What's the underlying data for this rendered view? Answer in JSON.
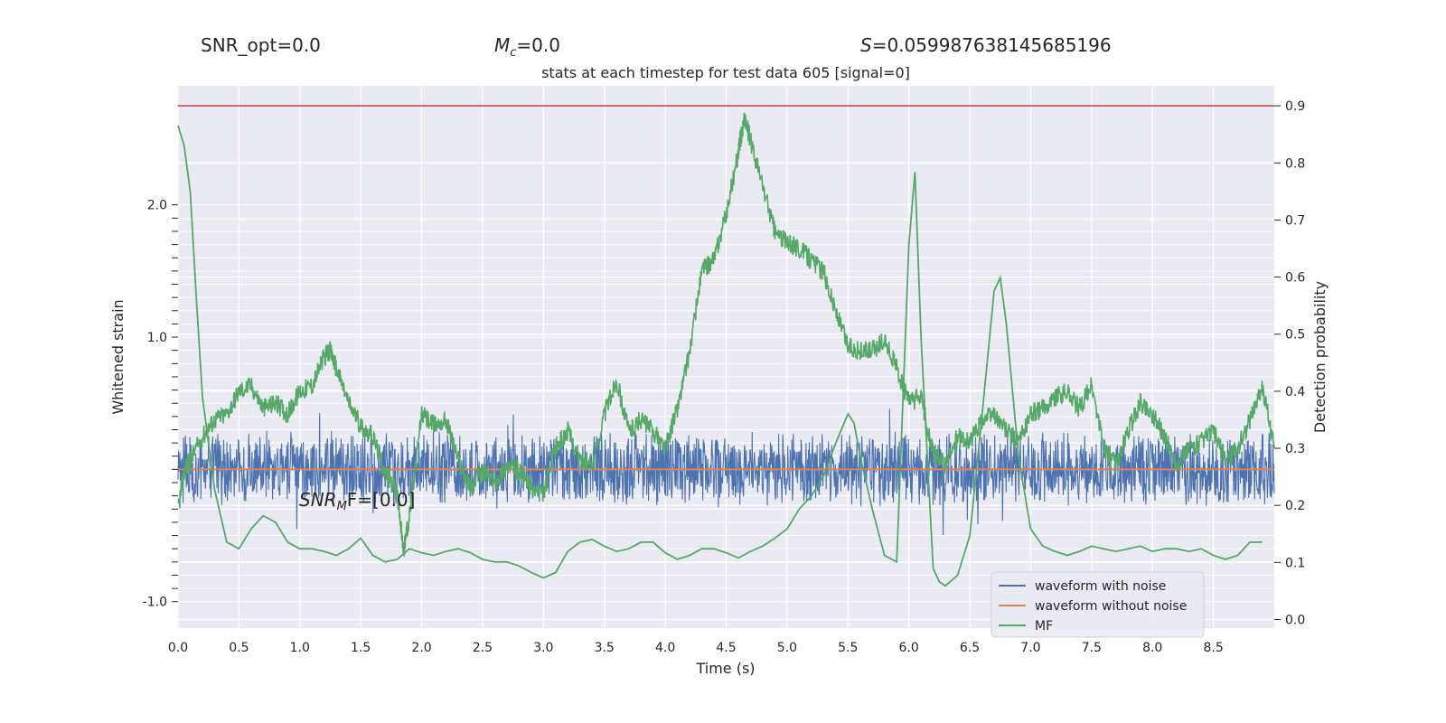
{
  "stats": {
    "snr_opt": "SNR_opt=0.0",
    "mc_symbol": "M",
    "mc_sub": "c",
    "mc_value": "=0.0",
    "s_symbol": "S",
    "s_value": "=0.0599876381456851​96"
  },
  "title": "stats at each timestep for test data 605 [signal=0]",
  "annotation": {
    "text_main": "SNR",
    "text_sub": "M",
    "text_tail": "F=[0.0]"
  },
  "chart_data": {
    "type": "line",
    "title": "stats at each timestep for test data 605 [signal=0]",
    "xlabel": "Time (s)",
    "xlim": [
      0,
      9.0
    ],
    "x_ticks": [
      "0.0",
      "0.5",
      "1.0",
      "1.5",
      "2.0",
      "2.5",
      "3.0",
      "3.5",
      "4.0",
      "4.5",
      "5.0",
      "5.5",
      "6.0",
      "6.5",
      "7.0",
      "7.5",
      "8.0",
      "8.5"
    ],
    "grid": true,
    "left_axis": {
      "ylabel": "Whitened strain",
      "ylim": [
        -1.2,
        2.9
      ],
      "tick_labels_visible": [
        "2.0",
        "1.0",
        "-1.0"
      ]
    },
    "right_axis": {
      "ylabel": "Detection probability",
      "ylim": [
        -0.015,
        0.935
      ],
      "ticks": [
        "0.0",
        "0.1",
        "0.2",
        "0.3",
        "0.4",
        "0.5",
        "0.6",
        "0.7",
        "0.8",
        "0.9"
      ]
    },
    "threshold": {
      "value": 0.9,
      "axis": "right",
      "color": "#c44e52"
    },
    "series": [
      {
        "name": "waveform with noise",
        "axis": "left",
        "color": "#4c72b0",
        "mean": 0.0,
        "amplitude": 0.3
      },
      {
        "name": "waveform without noise",
        "axis": "left",
        "color": "#dd8452",
        "value": 0.0
      },
      {
        "name": "MF",
        "axis": "left",
        "color": "#55a868",
        "x": [
          0.0,
          0.05,
          0.1,
          0.15,
          0.2,
          0.3,
          0.4,
          0.5,
          0.6,
          0.7,
          0.8,
          0.9,
          1.0,
          1.1,
          1.2,
          1.3,
          1.4,
          1.5,
          1.6,
          1.7,
          1.8,
          1.9,
          2.0,
          2.1,
          2.2,
          2.3,
          2.4,
          2.5,
          2.6,
          2.7,
          2.8,
          2.9,
          3.0,
          3.1,
          3.2,
          3.3,
          3.4,
          3.5,
          3.6,
          3.7,
          3.8,
          3.9,
          4.0,
          4.1,
          4.2,
          4.3,
          4.4,
          4.5,
          4.6,
          4.7,
          4.8,
          4.9,
          5.0,
          5.1,
          5.2,
          5.3,
          5.4,
          5.5,
          5.55,
          5.6,
          5.7,
          5.8,
          5.9,
          6.0,
          6.05,
          6.1,
          6.2,
          6.25,
          6.3,
          6.4,
          6.5,
          6.6,
          6.7,
          6.75,
          6.8,
          6.9,
          7.0,
          7.1,
          7.2,
          7.3,
          7.4,
          7.5,
          7.6,
          7.7,
          7.8,
          7.9,
          8.0,
          8.1,
          8.2,
          8.3,
          8.4,
          8.5,
          8.6,
          8.7,
          8.8,
          8.9
        ],
        "y": [
          2.6,
          2.45,
          2.1,
          1.3,
          0.55,
          -0.15,
          -0.55,
          -0.6,
          -0.45,
          -0.35,
          -0.4,
          -0.55,
          -0.6,
          -0.6,
          -0.62,
          -0.65,
          -0.6,
          -0.52,
          -0.65,
          -0.7,
          -0.68,
          -0.6,
          -0.63,
          -0.65,
          -0.62,
          -0.6,
          -0.63,
          -0.68,
          -0.7,
          -0.7,
          -0.73,
          -0.78,
          -0.82,
          -0.78,
          -0.62,
          -0.55,
          -0.53,
          -0.58,
          -0.62,
          -0.6,
          -0.55,
          -0.55,
          -0.63,
          -0.68,
          -0.65,
          -0.6,
          -0.6,
          -0.63,
          -0.67,
          -0.62,
          -0.58,
          -0.52,
          -0.45,
          -0.3,
          -0.2,
          -0.05,
          0.2,
          0.42,
          0.35,
          0.1,
          -0.3,
          -0.65,
          -0.7,
          1.7,
          2.25,
          1.0,
          -0.75,
          -0.85,
          -0.88,
          -0.8,
          -0.5,
          0.4,
          1.35,
          1.45,
          1.1,
          0.1,
          -0.45,
          -0.58,
          -0.62,
          -0.65,
          -0.62,
          -0.58,
          -0.6,
          -0.62,
          -0.6,
          -0.58,
          -0.62,
          -0.6,
          -0.6,
          -0.62,
          -0.6,
          -0.65,
          -0.68,
          -0.65,
          -0.55,
          -0.55
        ]
      },
      {
        "name": "detection probability",
        "axis": "right",
        "color": "#55a868",
        "in_legend": false,
        "x": [
          0.0,
          0.05,
          0.1,
          0.2,
          0.3,
          0.4,
          0.5,
          0.6,
          0.7,
          0.8,
          0.9,
          1.0,
          1.1,
          1.2,
          1.25,
          1.3,
          1.4,
          1.5,
          1.6,
          1.7,
          1.8,
          1.85,
          1.9,
          2.0,
          2.1,
          2.2,
          2.3,
          2.4,
          2.5,
          2.6,
          2.7,
          2.8,
          2.9,
          3.0,
          3.1,
          3.2,
          3.3,
          3.4,
          3.5,
          3.6,
          3.7,
          3.8,
          3.9,
          4.0,
          4.1,
          4.2,
          4.3,
          4.4,
          4.5,
          4.6,
          4.65,
          4.7,
          4.8,
          4.9,
          5.0,
          5.1,
          5.2,
          5.3,
          5.4,
          5.5,
          5.6,
          5.7,
          5.8,
          5.9,
          6.0,
          6.1,
          6.2,
          6.3,
          6.4,
          6.5,
          6.6,
          6.7,
          6.8,
          6.9,
          7.0,
          7.1,
          7.2,
          7.3,
          7.4,
          7.5,
          7.6,
          7.7,
          7.8,
          7.9,
          8.0,
          8.1,
          8.2,
          8.3,
          8.4,
          8.5,
          8.6,
          8.7,
          8.8,
          8.9,
          9.0
        ],
        "y": [
          0.19,
          0.26,
          0.28,
          0.32,
          0.35,
          0.36,
          0.4,
          0.41,
          0.37,
          0.38,
          0.36,
          0.4,
          0.41,
          0.46,
          0.47,
          0.44,
          0.38,
          0.34,
          0.32,
          0.26,
          0.22,
          0.12,
          0.18,
          0.36,
          0.34,
          0.35,
          0.28,
          0.23,
          0.26,
          0.24,
          0.27,
          0.26,
          0.23,
          0.22,
          0.3,
          0.33,
          0.28,
          0.27,
          0.36,
          0.42,
          0.33,
          0.35,
          0.33,
          0.3,
          0.37,
          0.47,
          0.61,
          0.63,
          0.71,
          0.82,
          0.88,
          0.84,
          0.76,
          0.68,
          0.66,
          0.65,
          0.63,
          0.61,
          0.54,
          0.48,
          0.47,
          0.47,
          0.49,
          0.44,
          0.38,
          0.39,
          0.29,
          0.27,
          0.32,
          0.31,
          0.35,
          0.36,
          0.33,
          0.31,
          0.36,
          0.37,
          0.39,
          0.4,
          0.37,
          0.41,
          0.3,
          0.27,
          0.33,
          0.38,
          0.36,
          0.32,
          0.27,
          0.3,
          0.31,
          0.33,
          0.28,
          0.3,
          0.35,
          0.41,
          0.3
        ]
      }
    ],
    "legend": {
      "placement": "lower-right",
      "entries": [
        "waveform with noise",
        "waveform without noise",
        "MF"
      ]
    }
  }
}
